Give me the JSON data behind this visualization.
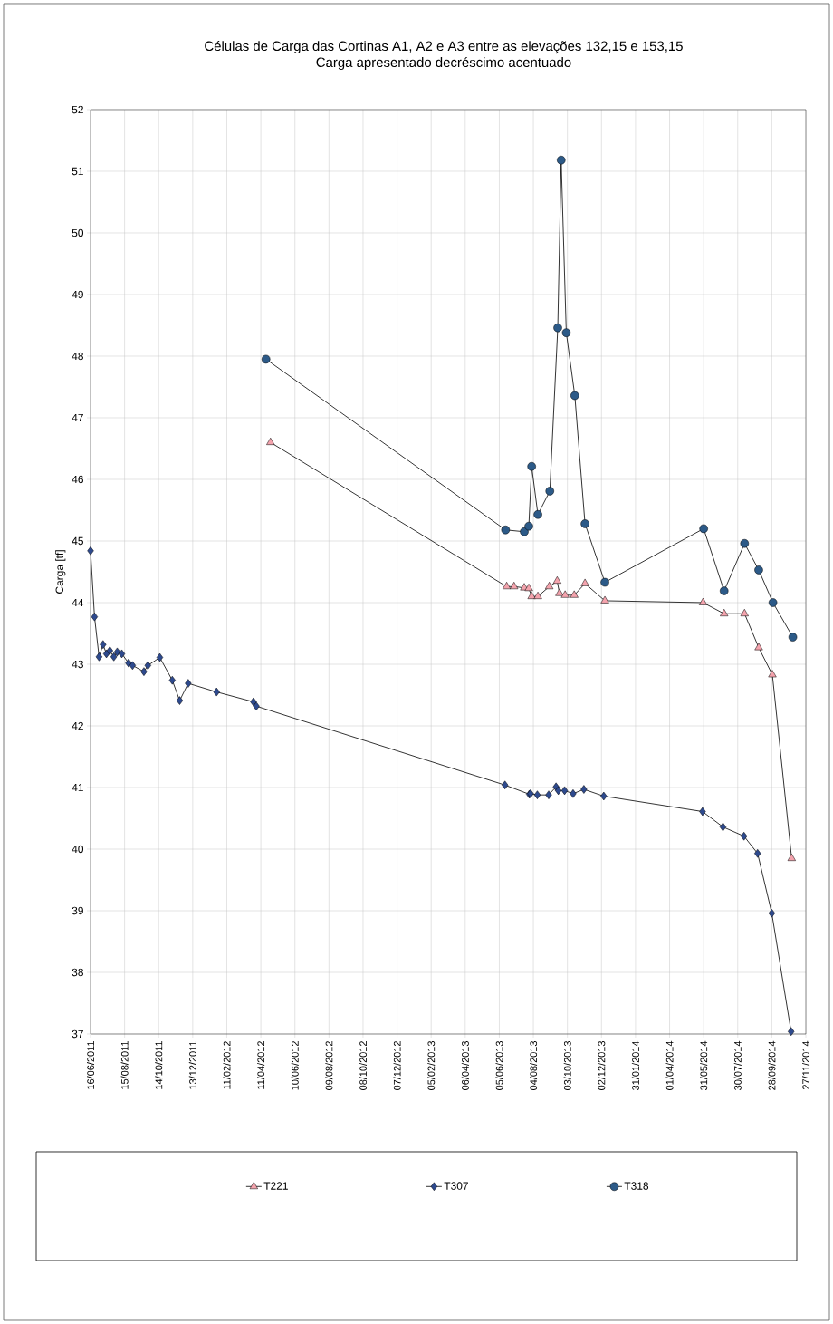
{
  "chart_data": {
    "type": "line",
    "title": "Células de Carga das Cortinas A1, A2 e A3 entre as elevações 132,15 e 153,15",
    "subtitle": "Carga apresentado decréscimo acentuado",
    "ylabel": "Carga [tf]",
    "xlim": [
      "2011-06-16",
      "2014-11-27"
    ],
    "ylim": [
      37,
      52
    ],
    "yticks": [
      37,
      38,
      39,
      40,
      41,
      42,
      43,
      44,
      45,
      46,
      47,
      48,
      49,
      50,
      51,
      52
    ],
    "xticks": [
      {
        "value": "2011-06-16",
        "label": "16/06/2011"
      },
      {
        "value": "2011-08-15",
        "label": "15/08/2011"
      },
      {
        "value": "2011-10-14",
        "label": "14/10/2011"
      },
      {
        "value": "2011-12-13",
        "label": "13/12/2011"
      },
      {
        "value": "2012-02-11",
        "label": "11/02/2012"
      },
      {
        "value": "2012-04-11",
        "label": "11/04/2012"
      },
      {
        "value": "2012-06-10",
        "label": "10/06/2012"
      },
      {
        "value": "2012-08-09",
        "label": "09/08/2012"
      },
      {
        "value": "2012-10-08",
        "label": "08/10/2012"
      },
      {
        "value": "2012-12-07",
        "label": "07/12/2012"
      },
      {
        "value": "2013-02-05",
        "label": "05/02/2013"
      },
      {
        "value": "2013-04-06",
        "label": "06/04/2013"
      },
      {
        "value": "2013-06-05",
        "label": "05/06/2013"
      },
      {
        "value": "2013-08-04",
        "label": "04/08/2013"
      },
      {
        "value": "2013-10-03",
        "label": "03/10/2013"
      },
      {
        "value": "2013-12-02",
        "label": "02/12/2013"
      },
      {
        "value": "2014-01-31",
        "label": "31/01/2014"
      },
      {
        "value": "2014-04-01",
        "label": "01/04/2014"
      },
      {
        "value": "2014-05-31",
        "label": "31/05/2014"
      },
      {
        "value": "2014-07-30",
        "label": "30/07/2014"
      },
      {
        "value": "2014-09-28",
        "label": "28/09/2014"
      },
      {
        "value": "2014-11-27",
        "label": "27/11/2014"
      }
    ],
    "grid": true,
    "legend": "bottom",
    "line_style": "solid",
    "series": [
      {
        "name": "T221",
        "color": "#f4a3ad",
        "marker": "triangle",
        "x": [
          "2012-04-28",
          "2013-06-18",
          "2013-07-01",
          "2013-07-19",
          "2013-07-27",
          "2013-08-01",
          "2013-08-12",
          "2013-09-01",
          "2013-09-15",
          "2013-09-19",
          "2013-09-29",
          "2013-10-15",
          "2013-11-03",
          "2013-12-08",
          "2014-05-30",
          "2014-07-06",
          "2014-08-11",
          "2014-09-05",
          "2014-09-29",
          "2014-11-02"
        ],
        "values": [
          46.6,
          44.26,
          44.26,
          44.24,
          44.23,
          44.1,
          44.1,
          44.26,
          44.35,
          44.15,
          44.12,
          44.12,
          44.31,
          44.03,
          44.0,
          43.82,
          43.82,
          43.27,
          42.83,
          39.85
        ]
      },
      {
        "name": "T307",
        "color": "#2e4a8e",
        "marker": "diamond",
        "x": [
          "2011-06-16",
          "2011-06-23",
          "2011-07-01",
          "2011-07-08",
          "2011-07-14",
          "2011-07-20",
          "2011-07-27",
          "2011-08-02",
          "2011-08-10",
          "2011-08-22",
          "2011-08-29",
          "2011-09-18",
          "2011-09-25",
          "2011-10-16",
          "2011-11-07",
          "2011-11-20",
          "2011-12-05",
          "2012-01-24",
          "2012-03-29",
          "2012-04-03",
          "2013-06-15",
          "2013-07-28",
          "2013-07-30",
          "2013-08-11",
          "2013-08-31",
          "2013-09-13",
          "2013-09-17",
          "2013-09-28",
          "2013-10-13",
          "2013-11-01",
          "2013-12-06",
          "2014-05-29",
          "2014-07-04",
          "2014-08-10",
          "2014-09-03",
          "2014-09-28",
          "2014-11-01"
        ],
        "values": [
          44.84,
          43.77,
          43.12,
          43.32,
          43.17,
          43.22,
          43.12,
          43.2,
          43.17,
          43.02,
          42.98,
          42.88,
          42.98,
          43.11,
          42.74,
          42.41,
          42.69,
          42.55,
          42.39,
          42.32,
          41.04,
          40.89,
          40.9,
          40.88,
          40.88,
          41.01,
          40.95,
          40.95,
          40.9,
          40.97,
          40.86,
          40.61,
          40.36,
          40.21,
          39.93,
          38.96,
          37.04
        ]
      },
      {
        "name": "T318",
        "color": "#2c5a88",
        "marker": "circle",
        "x": [
          "2012-04-20",
          "2013-06-16",
          "2013-07-19",
          "2013-07-27",
          "2013-08-01",
          "2013-08-12",
          "2013-09-02",
          "2013-09-16",
          "2013-09-22",
          "2013-10-01",
          "2013-10-16",
          "2013-11-03",
          "2013-12-08",
          "2014-05-31",
          "2014-07-06",
          "2014-08-11",
          "2014-09-05",
          "2014-09-30",
          "2014-11-04"
        ],
        "values": [
          47.95,
          45.18,
          45.15,
          45.24,
          46.21,
          45.43,
          45.81,
          48.46,
          51.18,
          48.38,
          47.36,
          45.28,
          44.33,
          45.2,
          44.19,
          44.96,
          44.53,
          44.0,
          43.44
        ]
      }
    ]
  }
}
